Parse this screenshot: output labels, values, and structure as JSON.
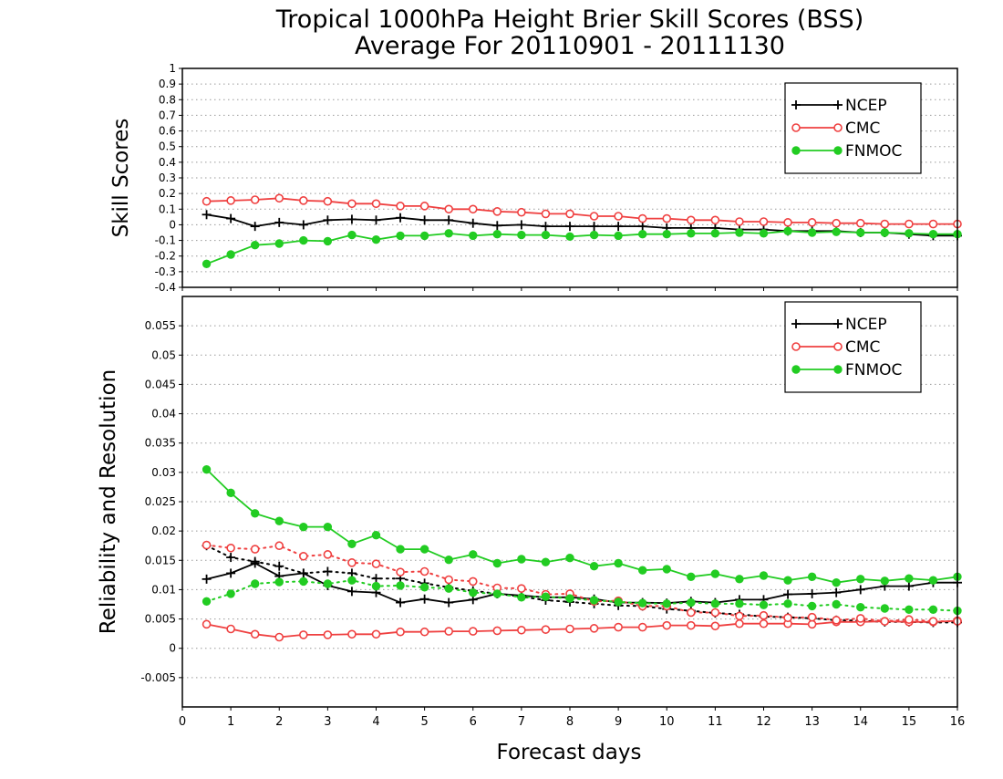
{
  "chart_data": {
    "type": "line",
    "title": "Tropical 1000hPa Height Brier Skill Scores (BSS)",
    "subtitle": "Average For 20110901 - 20111130",
    "xlabel": "Forecast days",
    "xlim": [
      0,
      16
    ],
    "xticks": [
      "0",
      "1",
      "2",
      "3",
      "4",
      "5",
      "6",
      "7",
      "8",
      "9",
      "10",
      "11",
      "12",
      "13",
      "14",
      "15",
      "16"
    ],
    "colors": {
      "NCEP": "#000000",
      "CMC": "#ef4040",
      "FNMOC": "#22cc22"
    },
    "x": [
      0.5,
      1,
      1.5,
      2,
      2.5,
      3,
      3.5,
      4,
      4.5,
      5,
      5.5,
      6,
      6.5,
      7,
      7.5,
      8,
      8.5,
      9,
      9.5,
      10,
      10.5,
      11,
      11.5,
      12,
      12.5,
      13,
      13.5,
      14,
      14.5,
      15,
      15.5,
      16
    ],
    "panels": [
      {
        "ylabel": "Skill Scores",
        "ylim": [
          -0.4,
          1
        ],
        "yticks": [
          "-0.4",
          "-0.3",
          "-0.2",
          "-0.1",
          "0",
          "0.1",
          "0.2",
          "0.3",
          "0.4",
          "0.5",
          "0.6",
          "0.7",
          "0.8",
          "0.9",
          "1"
        ],
        "grid": true,
        "legend": [
          "NCEP",
          "CMC",
          "FNMOC"
        ],
        "legend_position": "top-right",
        "series": [
          {
            "name": "NCEP",
            "style": "solid",
            "marker": "plus",
            "values": [
              0.065,
              0.04,
              -0.01,
              0.015,
              0.0,
              0.03,
              0.035,
              0.03,
              0.045,
              0.03,
              0.03,
              0.01,
              -0.005,
              0.0,
              -0.01,
              -0.01,
              -0.01,
              -0.01,
              -0.01,
              -0.02,
              -0.02,
              -0.02,
              -0.03,
              -0.03,
              -0.04,
              -0.04,
              -0.04,
              -0.05,
              -0.05,
              -0.06,
              -0.07,
              -0.07
            ]
          },
          {
            "name": "CMC",
            "style": "solid",
            "marker": "circle",
            "values": [
              0.15,
              0.155,
              0.16,
              0.17,
              0.155,
              0.15,
              0.135,
              0.135,
              0.12,
              0.12,
              0.1,
              0.1,
              0.085,
              0.08,
              0.07,
              0.07,
              0.055,
              0.055,
              0.04,
              0.04,
              0.03,
              0.03,
              0.02,
              0.02,
              0.015,
              0.015,
              0.01,
              0.01,
              0.005,
              0.005,
              0.005,
              0.005
            ]
          },
          {
            "name": "FNMOC",
            "style": "solid",
            "marker": "dot",
            "values": [
              -0.25,
              -0.19,
              -0.13,
              -0.12,
              -0.1,
              -0.105,
              -0.065,
              -0.095,
              -0.07,
              -0.07,
              -0.055,
              -0.07,
              -0.06,
              -0.065,
              -0.065,
              -0.075,
              -0.065,
              -0.07,
              -0.06,
              -0.06,
              -0.055,
              -0.055,
              -0.05,
              -0.055,
              -0.04,
              -0.05,
              -0.045,
              -0.05,
              -0.05,
              -0.055,
              -0.06,
              -0.06
            ]
          }
        ]
      },
      {
        "ylabel": "Reliability and Resolution",
        "ylim": [
          -0.01,
          0.06
        ],
        "yticks": [
          "-0.005",
          "0",
          "0.005",
          "0.01",
          "0.015",
          "0.02",
          "0.025",
          "0.03",
          "0.035",
          "0.04",
          "0.045",
          "0.05",
          "0.055"
        ],
        "grid": true,
        "legend": [
          "NCEP",
          "CMC",
          "FNMOC"
        ],
        "legend_position": "top-right",
        "series": [
          {
            "name": "NCEP",
            "role": "Resolution",
            "style": "solid",
            "marker": "plus",
            "values": [
              0.0118,
              0.0128,
              0.0145,
              0.0123,
              0.0128,
              0.0107,
              0.0097,
              0.0095,
              0.0078,
              0.0084,
              0.0078,
              0.0083,
              0.0093,
              0.009,
              0.0087,
              0.0087,
              0.0084,
              0.0078,
              0.0078,
              0.0077,
              0.008,
              0.0078,
              0.0083,
              0.0083,
              0.0092,
              0.0093,
              0.0095,
              0.01,
              0.0106,
              0.0106,
              0.0112,
              0.0112
            ]
          },
          {
            "name": "NCEP",
            "role": "Reliability",
            "style": "dotted",
            "marker": "plus",
            "values": [
              0.0175,
              0.0155,
              0.0148,
              0.014,
              0.0128,
              0.0131,
              0.0128,
              0.0119,
              0.0119,
              0.0111,
              0.0104,
              0.0098,
              0.0093,
              0.0088,
              0.0082,
              0.0079,
              0.0076,
              0.0073,
              0.0072,
              0.0067,
              0.0064,
              0.006,
              0.0058,
              0.0054,
              0.0053,
              0.0051,
              0.0048,
              0.0047,
              0.0045,
              0.0045,
              0.0044,
              0.0044
            ]
          },
          {
            "name": "CMC",
            "role": "Resolution",
            "style": "solid",
            "marker": "circle",
            "values": [
              0.0041,
              0.0033,
              0.0024,
              0.0019,
              0.0023,
              0.0023,
              0.0024,
              0.0024,
              0.0028,
              0.0028,
              0.0029,
              0.0029,
              0.003,
              0.0031,
              0.0032,
              0.0033,
              0.0034,
              0.0036,
              0.0036,
              0.0039,
              0.0039,
              0.0038,
              0.0042,
              0.0042,
              0.0042,
              0.0041,
              0.0045,
              0.0045,
              0.0046,
              0.0045,
              0.0045,
              0.0047
            ]
          },
          {
            "name": "CMC",
            "role": "Reliability",
            "style": "dotted",
            "marker": "circle",
            "values": [
              0.0176,
              0.0171,
              0.0169,
              0.0175,
              0.0157,
              0.016,
              0.0146,
              0.0144,
              0.013,
              0.0131,
              0.0117,
              0.0114,
              0.0103,
              0.0102,
              0.0092,
              0.0093,
              0.008,
              0.0081,
              0.0072,
              0.0072,
              0.0061,
              0.0061,
              0.0055,
              0.0056,
              0.0052,
              0.0053,
              0.0048,
              0.0051,
              0.0046,
              0.0049,
              0.0046,
              0.0046
            ]
          },
          {
            "name": "FNMOC",
            "role": "Resolution",
            "style": "solid",
            "marker": "dot",
            "values": [
              0.0305,
              0.0265,
              0.023,
              0.0217,
              0.0207,
              0.0207,
              0.0178,
              0.0193,
              0.0169,
              0.0169,
              0.0151,
              0.016,
              0.0145,
              0.0152,
              0.0147,
              0.0154,
              0.014,
              0.0145,
              0.0133,
              0.0135,
              0.0122,
              0.0127,
              0.0118,
              0.0124,
              0.0116,
              0.0122,
              0.0112,
              0.0118,
              0.0115,
              0.0119,
              0.0116,
              0.0122
            ]
          },
          {
            "name": "FNMOC",
            "role": "Reliability",
            "style": "dotted",
            "marker": "dot",
            "values": [
              0.008,
              0.0093,
              0.011,
              0.0113,
              0.0114,
              0.011,
              0.0116,
              0.0106,
              0.0107,
              0.0104,
              0.0102,
              0.0095,
              0.0093,
              0.0087,
              0.0088,
              0.0085,
              0.0082,
              0.0079,
              0.0077,
              0.0076,
              0.0078,
              0.0076,
              0.0076,
              0.0074,
              0.0076,
              0.0072,
              0.0075,
              0.007,
              0.0068,
              0.0066,
              0.0066,
              0.0064
            ]
          }
        ]
      }
    ]
  }
}
